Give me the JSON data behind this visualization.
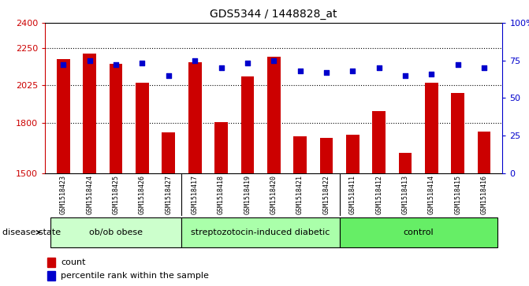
{
  "title": "GDS5344 / 1448828_at",
  "samples": [
    "GSM1518423",
    "GSM1518424",
    "GSM1518425",
    "GSM1518426",
    "GSM1518427",
    "GSM1518417",
    "GSM1518418",
    "GSM1518419",
    "GSM1518420",
    "GSM1518421",
    "GSM1518422",
    "GSM1518411",
    "GSM1518412",
    "GSM1518413",
    "GSM1518414",
    "GSM1518415",
    "GSM1518416"
  ],
  "counts": [
    2185,
    2215,
    2155,
    2040,
    1745,
    2165,
    1805,
    2080,
    2195,
    1720,
    1710,
    1730,
    1870,
    1620,
    2040,
    1980,
    1750
  ],
  "percentiles": [
    72,
    75,
    72,
    73,
    65,
    75,
    70,
    73,
    75,
    68,
    67,
    68,
    70,
    65,
    66,
    72,
    70
  ],
  "groups": [
    {
      "label": "ob/ob obese",
      "start": 0,
      "end": 5,
      "color": "#ccffcc"
    },
    {
      "label": "streptozotocin-induced diabetic",
      "start": 5,
      "end": 11,
      "color": "#aaffaa"
    },
    {
      "label": "control",
      "start": 11,
      "end": 17,
      "color": "#66ee66"
    }
  ],
  "ylim_left": [
    1500,
    2400
  ],
  "ylim_right": [
    0,
    100
  ],
  "yticks_left": [
    1500,
    1800,
    2025,
    2250,
    2400
  ],
  "yticks_left_labels": [
    "1500",
    "1800",
    "2025",
    "2250",
    "2400"
  ],
  "yticks_right": [
    0,
    25,
    50,
    75,
    100
  ],
  "yticks_right_labels": [
    "0",
    "25",
    "50",
    "75",
    "100%"
  ],
  "bar_color": "#cc0000",
  "dot_color": "#0000cc",
  "bar_width": 0.5,
  "sample_bg": "#c8c8c8",
  "plot_bg": "#ffffff",
  "legend_items": [
    {
      "label": "count",
      "color": "#cc0000"
    },
    {
      "label": "percentile rank within the sample",
      "color": "#0000cc"
    }
  ],
  "grid_yticks": [
    1800,
    2025,
    2250
  ]
}
